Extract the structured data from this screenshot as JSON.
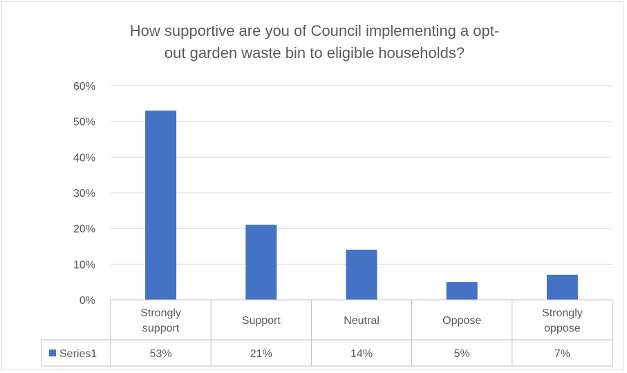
{
  "chart_data": {
    "type": "bar",
    "title_lines": [
      "How supportive are you of Council implementing a opt-",
      "out garden waste bin to eligible households?"
    ],
    "categories": [
      [
        "Strongly",
        "support"
      ],
      [
        "Support"
      ],
      [
        "Neutral"
      ],
      [
        "Oppose"
      ],
      [
        "Strongly",
        "oppose"
      ]
    ],
    "series": [
      {
        "name": "Series1",
        "values": [
          53,
          21,
          14,
          5,
          7
        ],
        "labels": [
          "53%",
          "21%",
          "14%",
          "5%",
          "7%"
        ],
        "color": "#4472c4"
      }
    ],
    "y_ticks": [
      "0%",
      "10%",
      "20%",
      "30%",
      "40%",
      "50%",
      "60%"
    ],
    "ylim": [
      0,
      60
    ],
    "grid": true,
    "data_table": true
  }
}
